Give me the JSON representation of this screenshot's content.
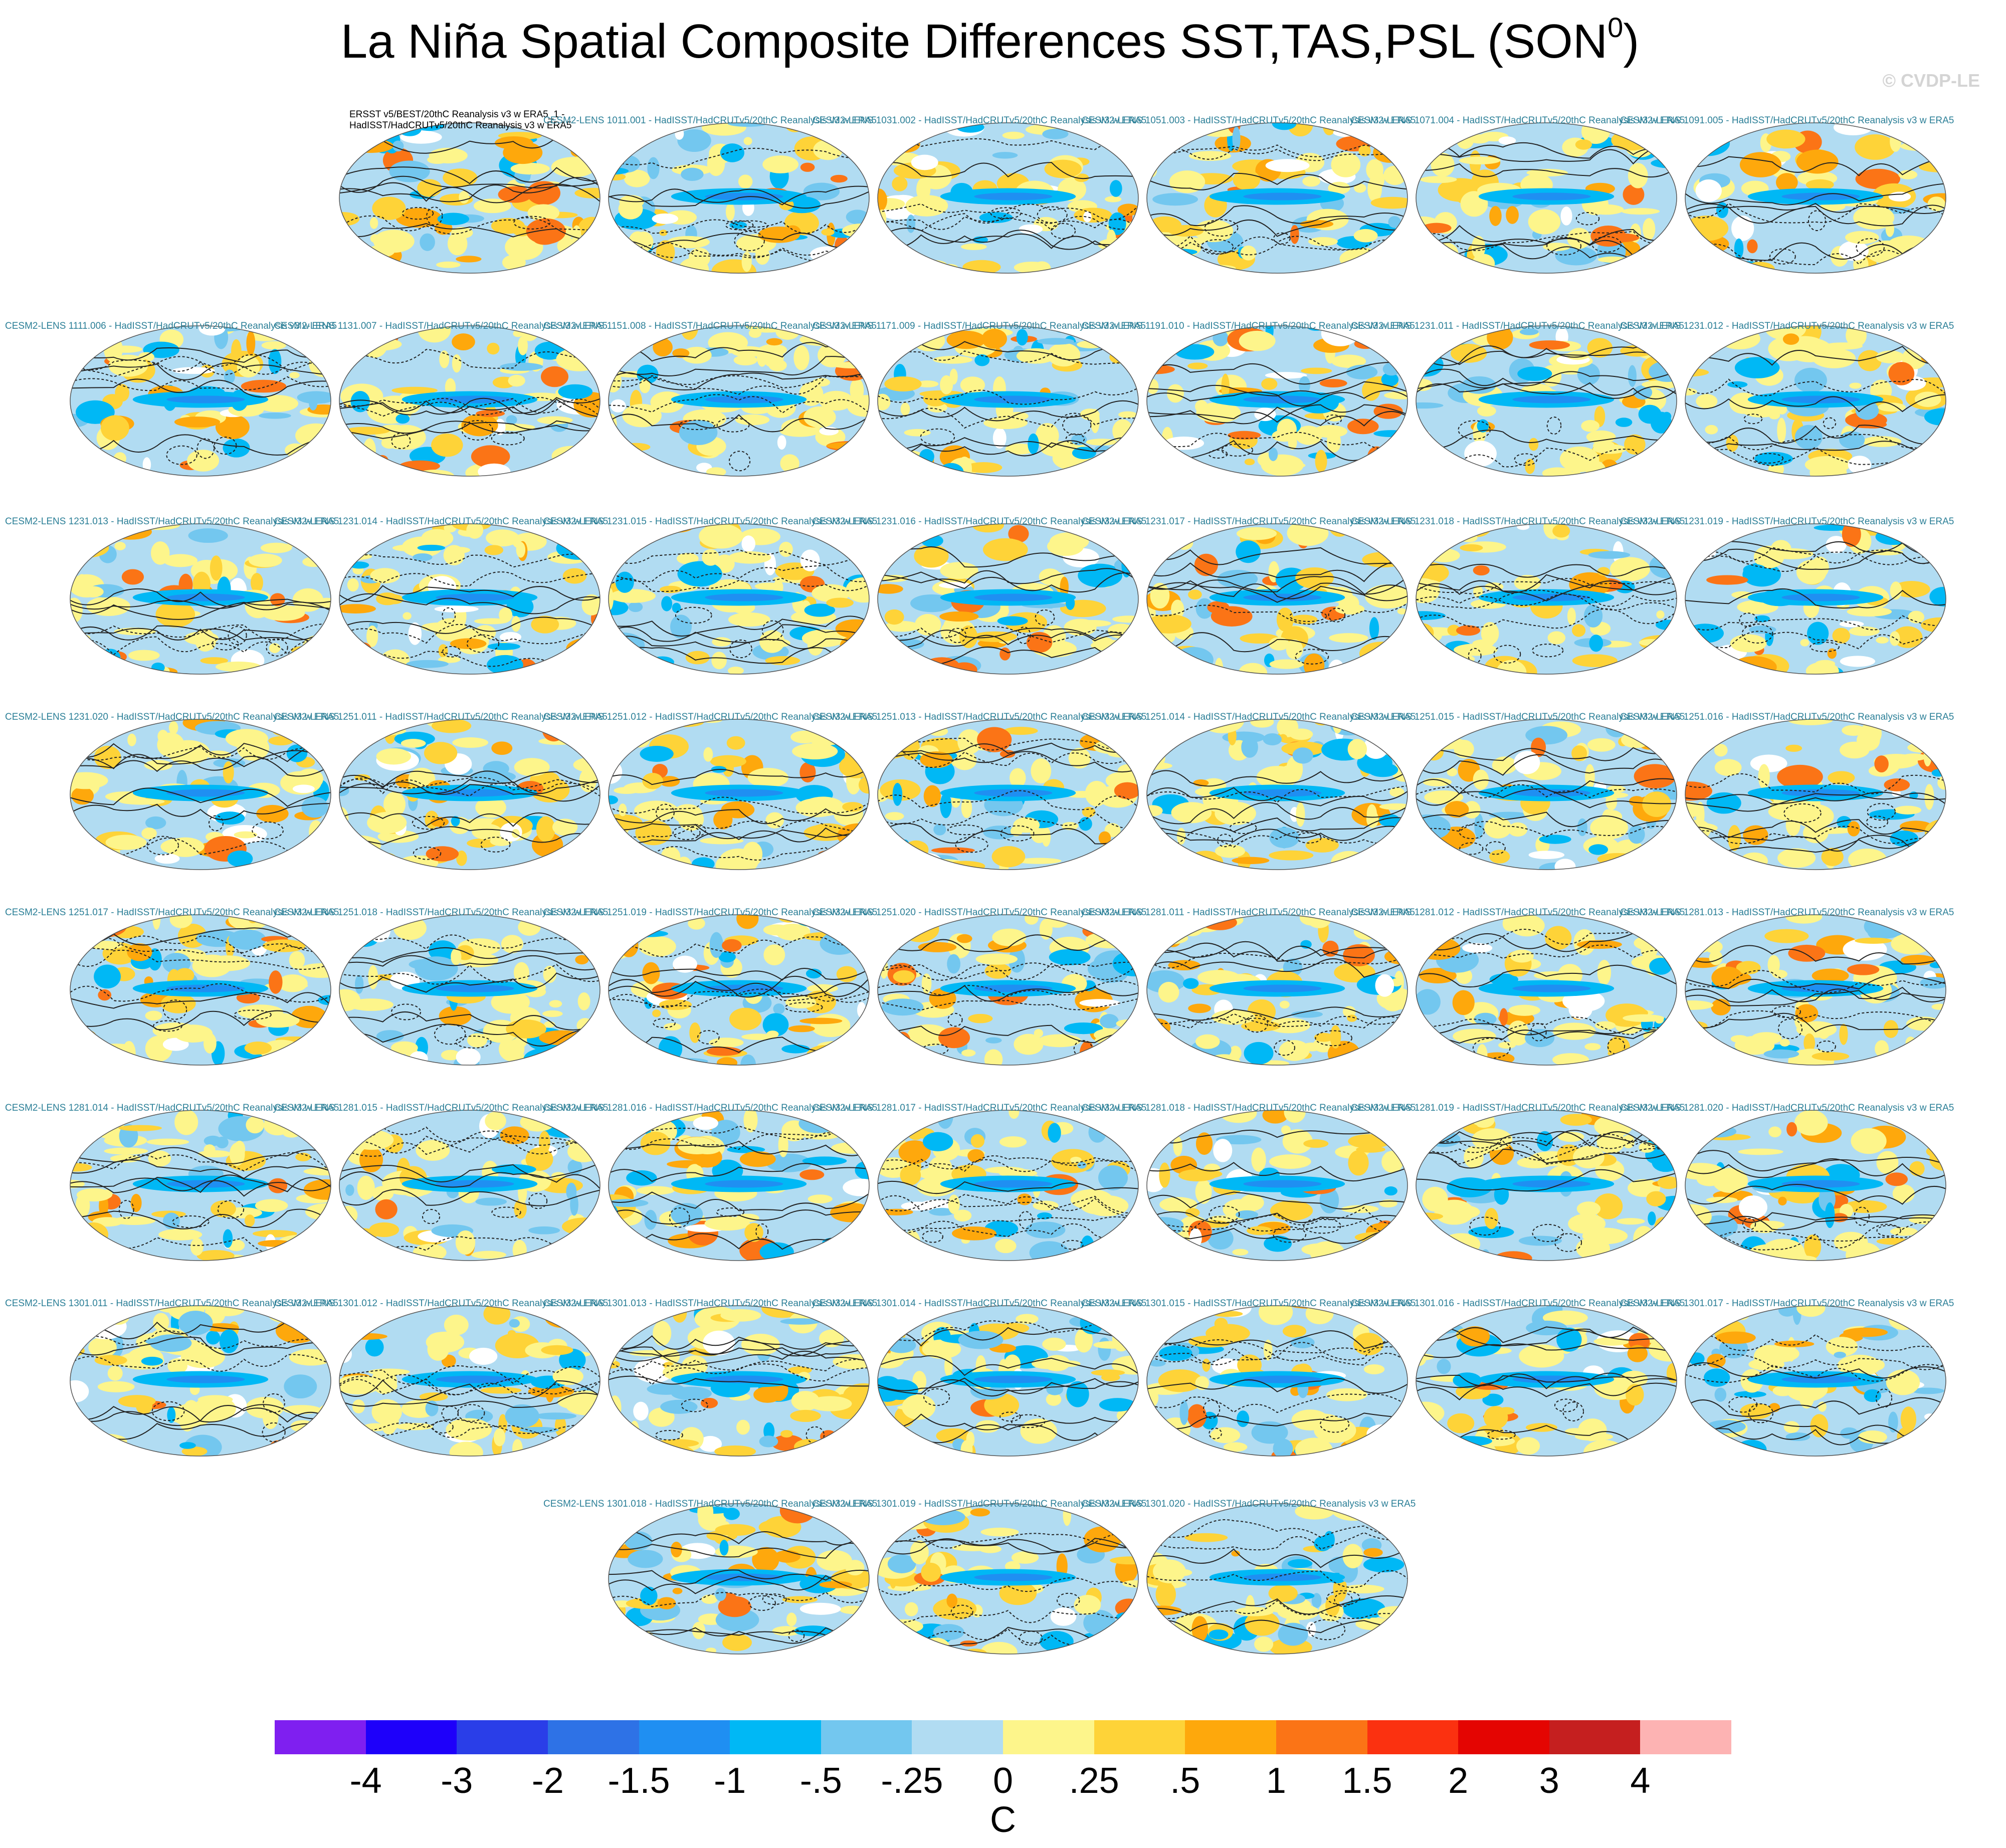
{
  "title": "La Niña Spatial Composite Differences SST,TAS,PSL (SON",
  "title_sup": "0",
  "title_end": ")",
  "watermark": "© CVDP-LE",
  "chart_data": {
    "type": "heatmap",
    "description_units": "C",
    "colorbar": {
      "colors": [
        "#7f1ff0",
        "#1e00fa",
        "#2a3ee8",
        "#2e72e6",
        "#1f8ff2",
        "#00b8f5",
        "#73c7ef",
        "#b1dcf2",
        "#fdf58b",
        "#fed338",
        "#fea80c",
        "#fb7416",
        "#fb3110",
        "#e40502",
        "#c51f1f",
        "#fdb3b3"
      ],
      "labels": [
        "-4",
        "-3",
        "-2",
        "-1.5",
        "-1",
        "-.5",
        "-.25",
        "0",
        ".25",
        ".5",
        "1",
        "1.5",
        "2",
        "3",
        "4"
      ],
      "units": "C"
    },
    "panels": [
      {
        "title": "ERSST v5/BEST/20thC Reanalysis v3 w ERA5_1 - HadISST/HadCRUTv5/20thC Reanalysis v3 w ERA5",
        "obs": true
      },
      {
        "title": "CESM2-LENS 1011.001 - HadISST/HadCRUTv5/20thC Reanalysis v3 w ERA5"
      },
      {
        "title": "CESM2-LENS 1031.002 - HadISST/HadCRUTv5/20thC Reanalysis v3 w ERA5"
      },
      {
        "title": "CESM2-LENS 1051.003 - HadISST/HadCRUTv5/20thC Reanalysis v3 w ERA5"
      },
      {
        "title": "CESM2-LENS 1071.004 - HadISST/HadCRUTv5/20thC Reanalysis v3 w ERA5"
      },
      {
        "title": "CESM2-LENS 1091.005 - HadISST/HadCRUTv5/20thC Reanalysis v3 w ERA5"
      },
      {
        "title": "CESM2-LENS 1111.006 - HadISST/HadCRUTv5/20thC Reanalysis v3 w ERA5"
      },
      {
        "title": "CESM2-LENS 1131.007 - HadISST/HadCRUTv5/20thC Reanalysis v3 w ERA5"
      },
      {
        "title": "CESM2-LENS 1151.008 - HadISST/HadCRUTv5/20thC Reanalysis v3 w ERA5"
      },
      {
        "title": "CESM2-LENS 1171.009 - HadISST/HadCRUTv5/20thC Reanalysis v3 w ERA5"
      },
      {
        "title": "CESM2-LENS 1191.010 - HadISST/HadCRUTv5/20thC Reanalysis v3 w ERA5"
      },
      {
        "title": "CESM2-LENS 1231.011 - HadISST/HadCRUTv5/20thC Reanalysis v3 w ERA5"
      },
      {
        "title": "CESM2-LENS 1231.012 - HadISST/HadCRUTv5/20thC Reanalysis v3 w ERA5"
      },
      {
        "title": "CESM2-LENS 1231.013 - HadISST/HadCRUTv5/20thC Reanalysis v3 w ERA5"
      },
      {
        "title": "CESM2-LENS 1231.014 - HadISST/HadCRUTv5/20thC Reanalysis v3 w ERA5"
      },
      {
        "title": "CESM2-LENS 1231.015 - HadISST/HadCRUTv5/20thC Reanalysis v3 w ERA5"
      },
      {
        "title": "CESM2-LENS 1231.016 - HadISST/HadCRUTv5/20thC Reanalysis v3 w ERA5"
      },
      {
        "title": "CESM2-LENS 1231.017 - HadISST/HadCRUTv5/20thC Reanalysis v3 w ERA5"
      },
      {
        "title": "CESM2-LENS 1231.018 - HadISST/HadCRUTv5/20thC Reanalysis v3 w ERA5"
      },
      {
        "title": "CESM2-LENS 1231.019 - HadISST/HadCRUTv5/20thC Reanalysis v3 w ERA5"
      },
      {
        "title": "CESM2-LENS 1231.020 - HadISST/HadCRUTv5/20thC Reanalysis v3 w ERA5"
      },
      {
        "title": "CESM2-LENS 1251.011 - HadISST/HadCRUTv5/20thC Reanalysis v3 w ERA5"
      },
      {
        "title": "CESM2-LENS 1251.012 - HadISST/HadCRUTv5/20thC Reanalysis v3 w ERA5"
      },
      {
        "title": "CESM2-LENS 1251.013 - HadISST/HadCRUTv5/20thC Reanalysis v3 w ERA5"
      },
      {
        "title": "CESM2-LENS 1251.014 - HadISST/HadCRUTv5/20thC Reanalysis v3 w ERA5"
      },
      {
        "title": "CESM2-LENS 1251.015 - HadISST/HadCRUTv5/20thC Reanalysis v3 w ERA5"
      },
      {
        "title": "CESM2-LENS 1251.016 - HadISST/HadCRUTv5/20thC Reanalysis v3 w ERA5"
      },
      {
        "title": "CESM2-LENS 1251.017 - HadISST/HadCRUTv5/20thC Reanalysis v3 w ERA5"
      },
      {
        "title": "CESM2-LENS 1251.018 - HadISST/HadCRUTv5/20thC Reanalysis v3 w ERA5"
      },
      {
        "title": "CESM2-LENS 1251.019 - HadISST/HadCRUTv5/20thC Reanalysis v3 w ERA5"
      },
      {
        "title": "CESM2-LENS 1251.020 - HadISST/HadCRUTv5/20thC Reanalysis v3 w ERA5"
      },
      {
        "title": "CESM2-LENS 1281.011 - HadISST/HadCRUTv5/20thC Reanalysis v3 w ERA5"
      },
      {
        "title": "CESM2-LENS 1281.012 - HadISST/HadCRUTv5/20thC Reanalysis v3 w ERA5"
      },
      {
        "title": "CESM2-LENS 1281.013 - HadISST/HadCRUTv5/20thC Reanalysis v3 w ERA5"
      },
      {
        "title": "CESM2-LENS 1281.014 - HadISST/HadCRUTv5/20thC Reanalysis v3 w ERA5"
      },
      {
        "title": "CESM2-LENS 1281.015 - HadISST/HadCRUTv5/20thC Reanalysis v3 w ERA5"
      },
      {
        "title": "CESM2-LENS 1281.016 - HadISST/HadCRUTv5/20thC Reanalysis v3 w ERA5"
      },
      {
        "title": "CESM2-LENS 1281.017 - HadISST/HadCRUTv5/20thC Reanalysis v3 w ERA5"
      },
      {
        "title": "CESM2-LENS 1281.018 - HadISST/HadCRUTv5/20thC Reanalysis v3 w ERA5"
      },
      {
        "title": "CESM2-LENS 1281.019 - HadISST/HadCRUTv5/20thC Reanalysis v3 w ERA5"
      },
      {
        "title": "CESM2-LENS 1281.020 - HadISST/HadCRUTv5/20thC Reanalysis v3 w ERA5"
      },
      {
        "title": "CESM2-LENS 1301.011 - HadISST/HadCRUTv5/20thC Reanalysis v3 w ERA5"
      },
      {
        "title": "CESM2-LENS 1301.012 - HadISST/HadCRUTv5/20thC Reanalysis v3 w ERA5"
      },
      {
        "title": "CESM2-LENS 1301.013 - HadISST/HadCRUTv5/20thC Reanalysis v3 w ERA5"
      },
      {
        "title": "CESM2-LENS 1301.014 - HadISST/HadCRUTv5/20thC Reanalysis v3 w ERA5"
      },
      {
        "title": "CESM2-LENS 1301.015 - HadISST/HadCRUTv5/20thC Reanalysis v3 w ERA5"
      },
      {
        "title": "CESM2-LENS 1301.016 - HadISST/HadCRUTv5/20thC Reanalysis v3 w ERA5"
      },
      {
        "title": "CESM2-LENS 1301.017 - HadISST/HadCRUTv5/20thC Reanalysis v3 w ERA5"
      },
      {
        "title": "CESM2-LENS 1301.018 - HadISST/HadCRUTv5/20thC Reanalysis v3 w ERA5"
      },
      {
        "title": "CESM2-LENS 1301.019 - HadISST/HadCRUTv5/20thC Reanalysis v3 w ERA5"
      },
      {
        "title": "CESM2-LENS 1301.020 - HadISST/HadCRUTv5/20thC Reanalysis v3 w ERA5"
      }
    ]
  }
}
